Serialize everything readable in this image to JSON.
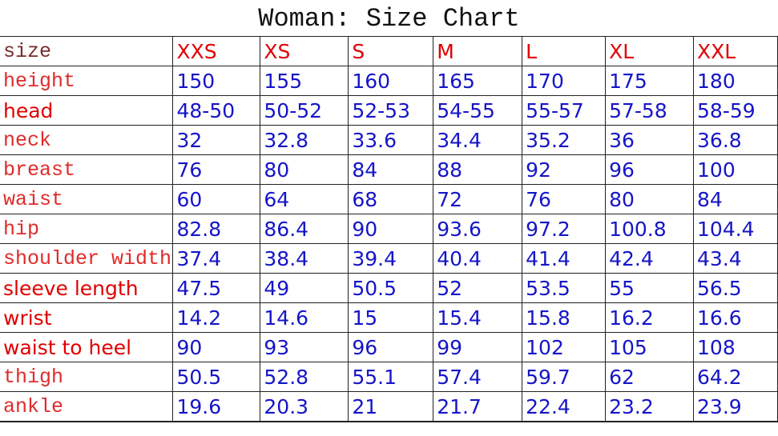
{
  "title": "Woman: Size Chart",
  "colors": {
    "label": "#e02a2a",
    "bold_label": "#e00000",
    "value": "#1515c8",
    "size_header": "#e00000"
  },
  "header": {
    "label": "size",
    "sizes": [
      "XXS",
      "XS",
      "S",
      "M",
      "L",
      "XL",
      "XXL"
    ]
  },
  "rows": [
    {
      "label": "height",
      "style": "serif",
      "values": [
        "150",
        "155",
        "160",
        "165",
        "170",
        "175",
        "180"
      ]
    },
    {
      "label": "head",
      "style": "bold",
      "values": [
        "48-50",
        "50-52",
        "52-53",
        "54-55",
        "55-57",
        "57-58",
        "58-59"
      ]
    },
    {
      "label": "neck",
      "style": "serif",
      "values": [
        "32",
        "32.8",
        "33.6",
        "34.4",
        "35.2",
        "36",
        "36.8"
      ]
    },
    {
      "label": "breast",
      "style": "serif",
      "values": [
        "76",
        "80",
        "84",
        "88",
        "92",
        "96",
        "100"
      ]
    },
    {
      "label": "waist",
      "style": "serif",
      "values": [
        "60",
        "64",
        "68",
        "72",
        "76",
        "80",
        "84"
      ]
    },
    {
      "label": "hip",
      "style": "serif",
      "values": [
        "82.8",
        "86.4",
        "90",
        "93.6",
        "97.2",
        "100.8",
        "104.4"
      ]
    },
    {
      "label": "shoulder width",
      "style": "serif",
      "values": [
        "37.4",
        "38.4",
        "39.4",
        "40.4",
        "41.4",
        "42.4",
        "43.4"
      ]
    },
    {
      "label": "sleeve length",
      "style": "bold",
      "values": [
        "47.5",
        "49",
        "50.5",
        "52",
        "53.5",
        "55",
        "56.5"
      ]
    },
    {
      "label": "wrist",
      "style": "bold",
      "values": [
        "14.2",
        "14.6",
        "15",
        "15.4",
        "15.8",
        "16.2",
        "16.6"
      ]
    },
    {
      "label": "waist to heel",
      "style": "bold",
      "values": [
        "90",
        "93",
        "96",
        "99",
        "102",
        "105",
        "108"
      ]
    },
    {
      "label": "thigh",
      "style": "serif",
      "values": [
        "50.5",
        "52.8",
        "55.1",
        "57.4",
        "59.7",
        "62",
        "64.2"
      ]
    },
    {
      "label": "ankle",
      "style": "serif",
      "values": [
        "19.6",
        "20.3",
        "21",
        "21.7",
        "22.4",
        "23.2",
        "23.9"
      ]
    }
  ]
}
